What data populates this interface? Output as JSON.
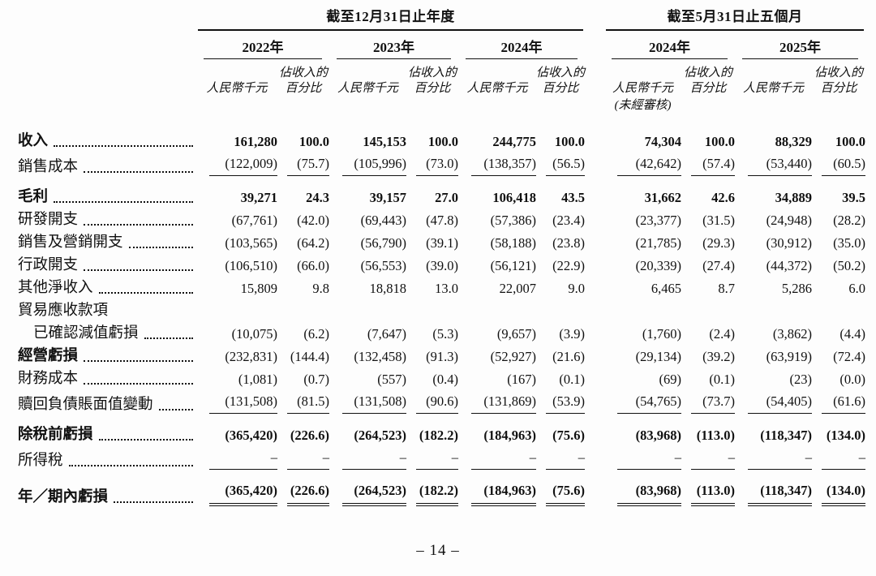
{
  "colors": {
    "text": "#111111",
    "background": "#fdfdfd",
    "rule": "#111111"
  },
  "page": {
    "number_label": "– 14 –"
  },
  "table": {
    "period_groups": [
      {
        "label": "截至12月31日止年度",
        "years": [
          "2022年",
          "2023年",
          "2024年"
        ]
      },
      {
        "label": "截至5月31日止五個月",
        "years": [
          "2024年",
          "2025年"
        ]
      }
    ],
    "col_headers": {
      "amount": "人民幣千元",
      "pct_line1": "佔收入的",
      "pct_line2": "百分比",
      "unaudited": "(未經審核)"
    },
    "rows": [
      {
        "label": "收入",
        "bold_label": true,
        "bold_values": true,
        "values": [
          "161,280",
          "100.0",
          "145,153",
          "100.0",
          "244,775",
          "100.0",
          "74,304",
          "100.0",
          "88,329",
          "100.0"
        ]
      },
      {
        "label": "銷售成本",
        "rule_below": true,
        "values": [
          "(122,009)",
          "(75.7)",
          "(105,996)",
          "(73.0)",
          "(138,357)",
          "(56.5)",
          "(42,642)",
          "(57.4)",
          "(53,440)",
          "(60.5)"
        ]
      },
      {
        "label": "毛利",
        "bold_label": true,
        "bold_values": true,
        "gap_top": true,
        "values": [
          "39,271",
          "24.3",
          "39,157",
          "27.0",
          "106,418",
          "43.5",
          "31,662",
          "42.6",
          "34,889",
          "39.5"
        ]
      },
      {
        "label": "研發開支",
        "values": [
          "(67,761)",
          "(42.0)",
          "(69,443)",
          "(47.8)",
          "(57,386)",
          "(23.4)",
          "(23,377)",
          "(31.5)",
          "(24,948)",
          "(28.2)"
        ]
      },
      {
        "label": "銷售及營銷開支",
        "values": [
          "(103,565)",
          "(64.2)",
          "(56,790)",
          "(39.1)",
          "(58,188)",
          "(23.8)",
          "(21,785)",
          "(29.3)",
          "(30,912)",
          "(35.0)"
        ]
      },
      {
        "label": "行政開支",
        "values": [
          "(106,510)",
          "(66.0)",
          "(56,553)",
          "(39.0)",
          "(56,121)",
          "(22.9)",
          "(20,339)",
          "(27.4)",
          "(44,372)",
          "(50.2)"
        ]
      },
      {
        "label": "其他淨收入",
        "values": [
          "15,809",
          "9.8",
          "18,818",
          "13.0",
          "22,007",
          "9.0",
          "6,465",
          "8.7",
          "5,286",
          "6.0"
        ]
      },
      {
        "label": "貿易應收款項",
        "no_leader": true,
        "values": []
      },
      {
        "label": "已確認減值虧損",
        "indent": true,
        "values": [
          "(10,075)",
          "(6.2)",
          "(7,647)",
          "(5.3)",
          "(9,657)",
          "(3.9)",
          "(1,760)",
          "(2.4)",
          "(3,862)",
          "(4.4)"
        ]
      },
      {
        "label": "經營虧損",
        "bold_label": true,
        "values": [
          "(232,831)",
          "(144.4)",
          "(132,458)",
          "(91.3)",
          "(52,927)",
          "(21.6)",
          "(29,134)",
          "(39.2)",
          "(63,919)",
          "(72.4)"
        ]
      },
      {
        "label": "財務成本",
        "values": [
          "(1,081)",
          "(0.7)",
          "(557)",
          "(0.4)",
          "(167)",
          "(0.1)",
          "(69)",
          "(0.1)",
          "(23)",
          "(0.0)"
        ]
      },
      {
        "label": "贖回負債賬面值變動",
        "rule_below": true,
        "values": [
          "(131,508)",
          "(81.5)",
          "(131,508)",
          "(90.6)",
          "(131,869)",
          "(53.9)",
          "(54,765)",
          "(73.7)",
          "(54,405)",
          "(61.6)"
        ]
      },
      {
        "label": "除稅前虧損",
        "bold_label": true,
        "bold_values": true,
        "gap_top": true,
        "values": [
          "(365,420)",
          "(226.6)",
          "(264,523)",
          "(182.2)",
          "(184,963)",
          "(75.6)",
          "(83,968)",
          "(113.0)",
          "(118,347)",
          "(134.0)"
        ]
      },
      {
        "label": "所得稅",
        "rule_below": true,
        "values": [
          "–",
          "–",
          "–",
          "–",
          "–",
          "–",
          "–",
          "–",
          "–",
          "–"
        ]
      },
      {
        "label": "年／期內虧損",
        "bold_label": true,
        "bold_values": true,
        "gap_top": true,
        "dbl_below": true,
        "values": [
          "(365,420)",
          "(226.6)",
          "(264,523)",
          "(182.2)",
          "(184,963)",
          "(75.6)",
          "(83,968)",
          "(113.0)",
          "(118,347)",
          "(134.0)"
        ]
      }
    ]
  }
}
